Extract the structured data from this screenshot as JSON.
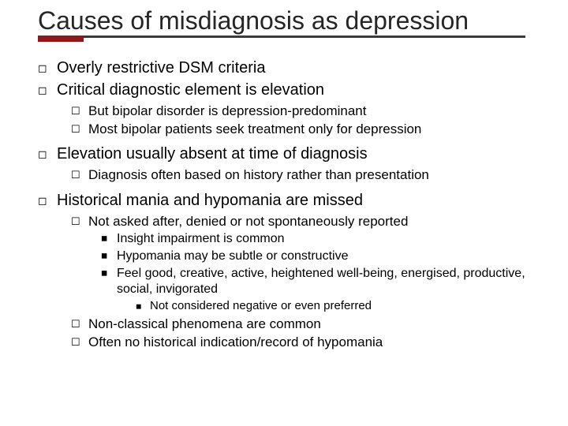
{
  "title": "Causes of misdiagnosis as depression",
  "colors": {
    "accent": "#8b1a1a",
    "underline": "#3b3b3b",
    "text": "#000000",
    "title": "#262626",
    "background": "#ffffff"
  },
  "typography": {
    "title_fontsize": 32,
    "lvl1_fontsize": 20,
    "lvl2_fontsize": 17,
    "lvl3_fontsize": 16,
    "lvl4_fontsize": 15,
    "font_family": "Arial"
  },
  "bullets": {
    "lvl1_glyph": "◻",
    "lvl2_glyph": "☐",
    "lvl3_glyph": "◼",
    "lvl4_glyph": "◼"
  },
  "items": {
    "i1": "Overly restrictive DSM criteria",
    "i2": "Critical diagnostic element is elevation",
    "i2a": "But bipolar disorder is depression-predominant",
    "i2b": "Most bipolar patients seek treatment only for depression",
    "i3": "Elevation usually absent at time of diagnosis",
    "i3a": "Diagnosis often based on history rather than presentation",
    "i4": "Historical mania and hypomania are missed",
    "i4a": "Not asked after, denied or not spontaneously reported",
    "i4a1": "Insight impairment is common",
    "i4a2": "Hypomania may be subtle or constructive",
    "i4a3": "Feel good, creative, active, heightened well-being, energised, productive, social, invigorated",
    "i4a3x": "Not considered negative or even preferred",
    "i4b": "Non-classical phenomena are common",
    "i4c": "Often no historical indication/record of hypomania"
  }
}
